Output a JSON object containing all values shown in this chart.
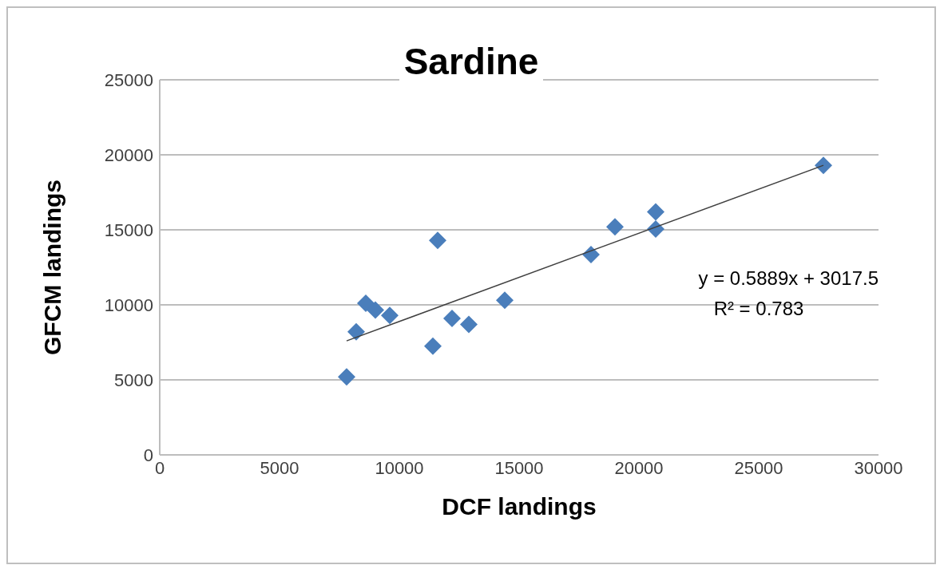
{
  "chart_data": {
    "type": "scatter",
    "title": "Sardine",
    "xlabel": "DCF landings",
    "ylabel": "GFCM landings",
    "xlim": [
      0,
      30000
    ],
    "xticks": [
      0,
      5000,
      10000,
      15000,
      20000,
      25000,
      30000
    ],
    "ylim": [
      0,
      25000
    ],
    "yticks": [
      0,
      5000,
      10000,
      15000,
      20000,
      25000
    ],
    "grid": "y",
    "series": [
      {
        "marker": "diamond",
        "color": "#4a7ebb",
        "x": [
          7800,
          8200,
          8600,
          9000,
          9600,
          11600,
          11400,
          12200,
          12900,
          14400,
          18000,
          19000,
          20700,
          20700,
          27700
        ],
        "values": [
          5200,
          8200,
          10100,
          9650,
          9300,
          14300,
          7250,
          9100,
          8700,
          10300,
          13350,
          15200,
          16200,
          15050,
          19300
        ]
      },
      {
        "type": "line",
        "marker": "none",
        "color": "#404040",
        "x": [
          7800,
          27700
        ],
        "values": [
          7600,
          19300
        ]
      }
    ],
    "annotations": [
      "y = 0.5889x + 3017.5",
      "R² = 0.783"
    ]
  }
}
